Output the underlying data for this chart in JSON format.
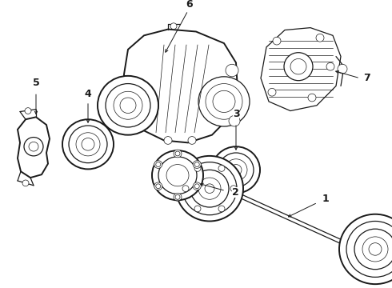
{
  "bg_color": "#ffffff",
  "line_color": "#1a1a1a",
  "label_color": "#000000",
  "fig_width": 4.9,
  "fig_height": 3.6,
  "dpi": 100,
  "lw_main": 0.9,
  "lw_thin": 0.5,
  "lw_thick": 1.4
}
